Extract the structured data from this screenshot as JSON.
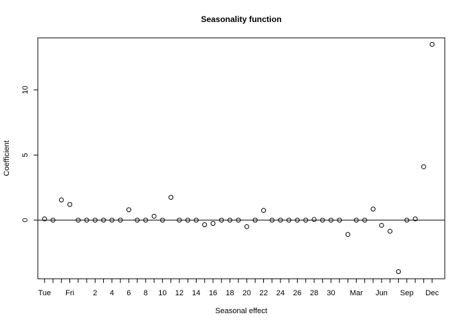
{
  "chart_data": {
    "type": "scatter",
    "title": "Seasonality function",
    "xlabel": "Seasonal effect",
    "ylabel": "Coefficient",
    "xlim": [
      0.2,
      48.5
    ],
    "ylim": [
      -4.5,
      14.0
    ],
    "grid": false,
    "reference_line": 0,
    "x": [
      1,
      2,
      3,
      4,
      5,
      6,
      7,
      8,
      9,
      10,
      11,
      12,
      13,
      14,
      15,
      16,
      17,
      18,
      19,
      20,
      21,
      22,
      23,
      24,
      25,
      26,
      27,
      28,
      29,
      30,
      31,
      32,
      33,
      34,
      35,
      36,
      37,
      38,
      39,
      40,
      41,
      42,
      43,
      44,
      45,
      46,
      47
    ],
    "values": [
      0.1,
      0.0,
      1.55,
      1.2,
      0.0,
      0.0,
      0.0,
      0.0,
      0.0,
      0.0,
      0.8,
      0.0,
      0.0,
      0.3,
      0.0,
      1.75,
      0.0,
      0.0,
      0.0,
      -0.35,
      -0.25,
      0.0,
      0.0,
      0.0,
      -0.5,
      0.0,
      0.75,
      0.0,
      0.0,
      0.0,
      0.0,
      0.0,
      0.05,
      0.0,
      0.0,
      0.0,
      -1.1,
      0.0,
      0.0,
      0.85,
      -0.4,
      -0.85,
      -3.95,
      0.0,
      0.1,
      4.1,
      13.5
    ],
    "y_ticks": [
      0,
      5,
      10
    ],
    "x_ticks": [
      1,
      2,
      3,
      4,
      5,
      6,
      7,
      8,
      9,
      10,
      11,
      12,
      13,
      14,
      15,
      16,
      17,
      18,
      19,
      20,
      21,
      22,
      23,
      24,
      25,
      26,
      27,
      28,
      29,
      30,
      31,
      32,
      33,
      34,
      35,
      36,
      37,
      38,
      39,
      40,
      41,
      42,
      43,
      44,
      45,
      46,
      47
    ],
    "x_tick_labels": [
      {
        "x": 1,
        "label": "Tue"
      },
      {
        "x": 4,
        "label": "Fri"
      },
      {
        "x": 7,
        "label": "2"
      },
      {
        "x": 9,
        "label": "4"
      },
      {
        "x": 11,
        "label": "6"
      },
      {
        "x": 13,
        "label": "8"
      },
      {
        "x": 15,
        "label": "10"
      },
      {
        "x": 17,
        "label": "12"
      },
      {
        "x": 19,
        "label": "14"
      },
      {
        "x": 21,
        "label": "16"
      },
      {
        "x": 23,
        "label": "18"
      },
      {
        "x": 25,
        "label": "20"
      },
      {
        "x": 27,
        "label": "22"
      },
      {
        "x": 29,
        "label": "24"
      },
      {
        "x": 31,
        "label": "26"
      },
      {
        "x": 33,
        "label": "28"
      },
      {
        "x": 35,
        "label": "30"
      },
      {
        "x": 38,
        "label": "Mar"
      },
      {
        "x": 41,
        "label": "Jun"
      },
      {
        "x": 44,
        "label": "Sep"
      },
      {
        "x": 47,
        "label": "Dec"
      }
    ]
  }
}
